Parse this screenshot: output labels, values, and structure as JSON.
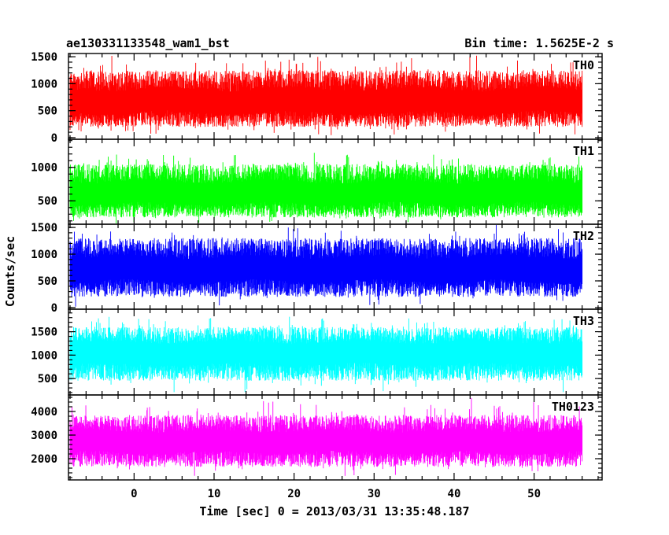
{
  "chart_data": {
    "type": "line",
    "title_left": "ae130331133548_wam1_bst",
    "title_right": "Bin time: 1.5625E-2 s",
    "xlabel": "Time [sec] 0 = 2013/03/31 13:35:48.187",
    "ylabel": "Counts/sec",
    "xlim": [
      -8.2,
      58.5
    ],
    "data_x_range": [
      -8.0,
      56.0
    ],
    "x_ticks": [
      0,
      10,
      20,
      30,
      40,
      50
    ],
    "x_tick_labels": [
      "0",
      "10",
      "20",
      "30",
      "40",
      "50"
    ],
    "grid": false,
    "legend": "none",
    "panels": [
      {
        "name": "TH0",
        "color": "#ff0000",
        "ylim": [
          -30,
          1560
        ],
        "y_ticks": [
          0,
          500,
          1000,
          1500
        ],
        "y_tick_labels": [
          "0",
          "500",
          "1000",
          "1500"
        ],
        "baseline": 650,
        "low_envelope": 200,
        "high_envelope": 1250,
        "peak": 1560
      },
      {
        "name": "TH1",
        "color": "#00ff00",
        "ylim": [
          150,
          1420
        ],
        "y_ticks": [
          500,
          1000
        ],
        "y_tick_labels": [
          "500",
          "1000"
        ],
        "baseline": 600,
        "low_envelope": 250,
        "high_envelope": 1050,
        "peak": 1280
      },
      {
        "name": "TH2",
        "color": "#0000ff",
        "ylim": [
          -30,
          1560
        ],
        "y_ticks": [
          0,
          500,
          1000,
          1500
        ],
        "y_tick_labels": [
          "0",
          "500",
          "1000",
          "1500"
        ],
        "baseline": 700,
        "low_envelope": 200,
        "high_envelope": 1300,
        "peak": 1560
      },
      {
        "name": "TH3",
        "color": "#00ffff",
        "ylim": [
          150,
          1980
        ],
        "y_ticks": [
          500,
          1000,
          1500
        ],
        "y_tick_labels": [
          "500",
          "1000",
          "1500"
        ],
        "baseline": 1050,
        "low_envelope": 450,
        "high_envelope": 1600,
        "peak": 1900
      },
      {
        "name": "TH0123",
        "color": "#ff00ff",
        "ylim": [
          1100,
          4700
        ],
        "y_ticks": [
          2000,
          3000,
          4000
        ],
        "y_tick_labels": [
          "2000",
          "3000",
          "4000"
        ],
        "baseline": 2700,
        "low_envelope": 1650,
        "high_envelope": 3850,
        "peak": 4600
      }
    ]
  }
}
